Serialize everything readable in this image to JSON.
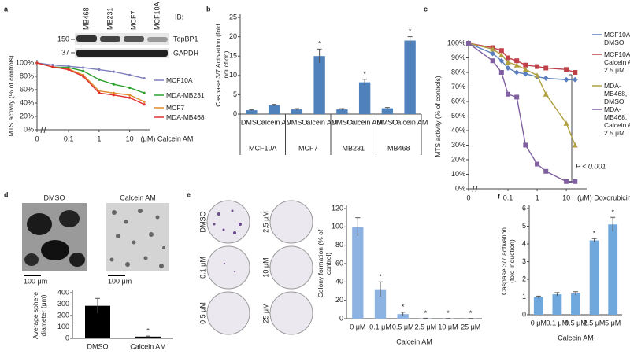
{
  "chart_data": [
    {
      "panel": "a",
      "type": "line",
      "ylabel": "MTS activity (% of controls)",
      "xlabel": "(μM) Calcein AM",
      "x": [
        0,
        0.03,
        0.1,
        0.3,
        1,
        3,
        10,
        30
      ],
      "xscale": "log",
      "x_break": true,
      "xlim": [
        0.02,
        40
      ],
      "xticks": [
        0,
        0.1,
        1,
        10
      ],
      "ylim": [
        0,
        100
      ],
      "yticks": [
        {
          "value": 0,
          "label": "0%"
        },
        {
          "value": 20,
          "label": "20%"
        },
        {
          "value": 40,
          "label": "40%"
        },
        {
          "value": 60,
          "label": "60%"
        },
        {
          "value": 80,
          "label": "80%"
        },
        {
          "value": 100,
          "label": "100%"
        }
      ],
      "legend": "right",
      "series": [
        {
          "name": "MCF10A",
          "color": "#8080c0",
          "marker": "dot",
          "values": [
            100,
            97,
            95,
            93,
            90,
            87,
            82,
            77
          ]
        },
        {
          "name": "MDA-MB231",
          "color": "#2ca02c",
          "marker": "dot",
          "values": [
            100,
            94,
            93,
            88,
            75,
            68,
            63,
            55
          ]
        },
        {
          "name": "MCF7",
          "color": "#e08a2c",
          "marker": "dot",
          "values": [
            100,
            94,
            91,
            82,
            58,
            55,
            52,
            42
          ]
        },
        {
          "name": "MDA-MB468",
          "color": "#e03030",
          "marker": "dot",
          "values": [
            100,
            94,
            90,
            80,
            55,
            52,
            48,
            38
          ]
        }
      ],
      "blot": {
        "title": "IB:",
        "lanes": [
          "MB468",
          "MB231",
          "MCF7",
          "MCF10A"
        ],
        "rows": [
          "TopBP1",
          "GAPDH"
        ],
        "markers": [
          150,
          37
        ]
      }
    },
    {
      "panel": "b",
      "type": "bar",
      "ylabel": "Caspase 3/7 Activation (fold induction)",
      "categories": [
        "DMSO",
        "Calcein AM",
        "DMSO",
        "Calcein AM",
        "DMSO",
        "Calcein AM",
        "DMSO",
        "Calcein AM"
      ],
      "groups": [
        "MCF10A",
        "MCF7",
        "MB231",
        "MB468"
      ],
      "values": [
        1,
        2.3,
        1.2,
        15,
        1.2,
        8.2,
        1.5,
        19
      ],
      "errors": [
        0.1,
        0.2,
        0.2,
        1.8,
        0.2,
        0.8,
        0.2,
        1
      ],
      "significant": [
        false,
        false,
        false,
        true,
        false,
        true,
        false,
        true
      ],
      "marker": "*",
      "color": "#4f81bd",
      "ylim": [
        0,
        25
      ],
      "yticks": [
        0,
        5,
        10,
        15,
        20,
        25
      ]
    },
    {
      "panel": "c",
      "type": "line",
      "ylabel": "MTS activity (% of controls)",
      "xlabel": "(μM) Doxorubicin",
      "x": [
        0,
        0.03,
        0.06,
        0.1,
        0.2,
        0.4,
        1,
        2,
        10,
        20
      ],
      "xscale": "log",
      "x_break": true,
      "xlim": [
        0.01,
        50
      ],
      "xticks": [
        0,
        0.1,
        1,
        10
      ],
      "ylim": [
        0,
        100
      ],
      "yticks": [
        {
          "value": 0,
          "label": "0%"
        },
        {
          "value": 10,
          "label": "10%"
        },
        {
          "value": 20,
          "label": "20%"
        },
        {
          "value": 30,
          "label": "30%"
        },
        {
          "value": 40,
          "label": "40%"
        },
        {
          "value": 50,
          "label": "50%"
        },
        {
          "value": 60,
          "label": "60%"
        },
        {
          "value": 70,
          "label": "70%"
        },
        {
          "value": 80,
          "label": "80%"
        },
        {
          "value": 90,
          "label": "90%"
        },
        {
          "value": 100,
          "label": "100%"
        }
      ],
      "legend": "right",
      "annotation": "P < 0.001",
      "series": [
        {
          "name": "MCF10A, DMSO",
          "color": "#5b7fbf",
          "marker": "diamond",
          "values": [
            100,
            93,
            88,
            83,
            80,
            79,
            77,
            76,
            75,
            75
          ]
        },
        {
          "name": "MCF10A, Calcein AM 2.5 μM",
          "color": "#c0404a",
          "marker": "square",
          "values": [
            100,
            97,
            95,
            90,
            88,
            85,
            84,
            83,
            82,
            80
          ]
        },
        {
          "name": "MDA-MB468, DMSO",
          "color": "#b0a040",
          "marker": "triangle",
          "values": [
            100,
            96,
            92,
            87,
            85,
            82,
            78,
            65,
            45,
            30
          ]
        },
        {
          "name": "MDA-MB468, Calcein AM 2.5 μM",
          "color": "#8060a0",
          "marker": "square",
          "values": [
            100,
            88,
            80,
            65,
            63,
            30,
            17,
            12,
            5,
            5
          ]
        }
      ]
    },
    {
      "panel": "d",
      "type": "bar",
      "ylabel": "Average sphere diameter (μm)",
      "image_labels": [
        "DMSO",
        "Calcein AM"
      ],
      "scale_bar": "100 μm",
      "categories": [
        "DMSO",
        "Calcein AM"
      ],
      "values": [
        285,
        15
      ],
      "errors": [
        65,
        5
      ],
      "significant": [
        false,
        true
      ],
      "marker": "*",
      "color": "#000000",
      "ylim": [
        0,
        400
      ],
      "yticks": [
        0,
        100,
        200,
        300,
        400
      ]
    },
    {
      "panel": "e",
      "type": "bar",
      "ylabel": "Colony formation (% of control)",
      "xlabel": "Calcein AM",
      "dish_labels": [
        "DMSO",
        "0.1 μM",
        "0.5 μM",
        "2.5 μM",
        "10 μM",
        "25 μM"
      ],
      "categories": [
        "0 μM",
        "0.1 μM",
        "0.5 μM",
        "2.5 μM",
        "10 μM",
        "25 μM"
      ],
      "values": [
        100,
        32,
        5,
        0.3,
        0.2,
        0.2
      ],
      "errors": [
        10,
        8,
        2,
        0.2,
        0.1,
        0.1
      ],
      "significant": [
        false,
        true,
        true,
        true,
        true,
        true
      ],
      "marker": "*",
      "color": "#8db3e2",
      "ylim": [
        0,
        120
      ],
      "yticks": [
        0,
        20,
        40,
        60,
        80,
        100,
        120
      ]
    },
    {
      "panel": "f",
      "type": "bar",
      "ylabel": "Caspase 3/7 activation (fold induction)",
      "xlabel": "Calcein AM",
      "categories": [
        "0 μM",
        "0.1 μM",
        "0.5 μM",
        "2.5 μM",
        "5 μM"
      ],
      "values": [
        1,
        1.15,
        1.2,
        4.2,
        5.1
      ],
      "errors": [
        0.05,
        0.1,
        0.1,
        0.1,
        0.4
      ],
      "significant": [
        false,
        false,
        false,
        true,
        true
      ],
      "marker": "*",
      "color": "#6fa8dc",
      "ylim": [
        0,
        6
      ],
      "yticks": [
        0,
        1,
        2,
        3,
        4,
        5,
        6
      ]
    }
  ]
}
